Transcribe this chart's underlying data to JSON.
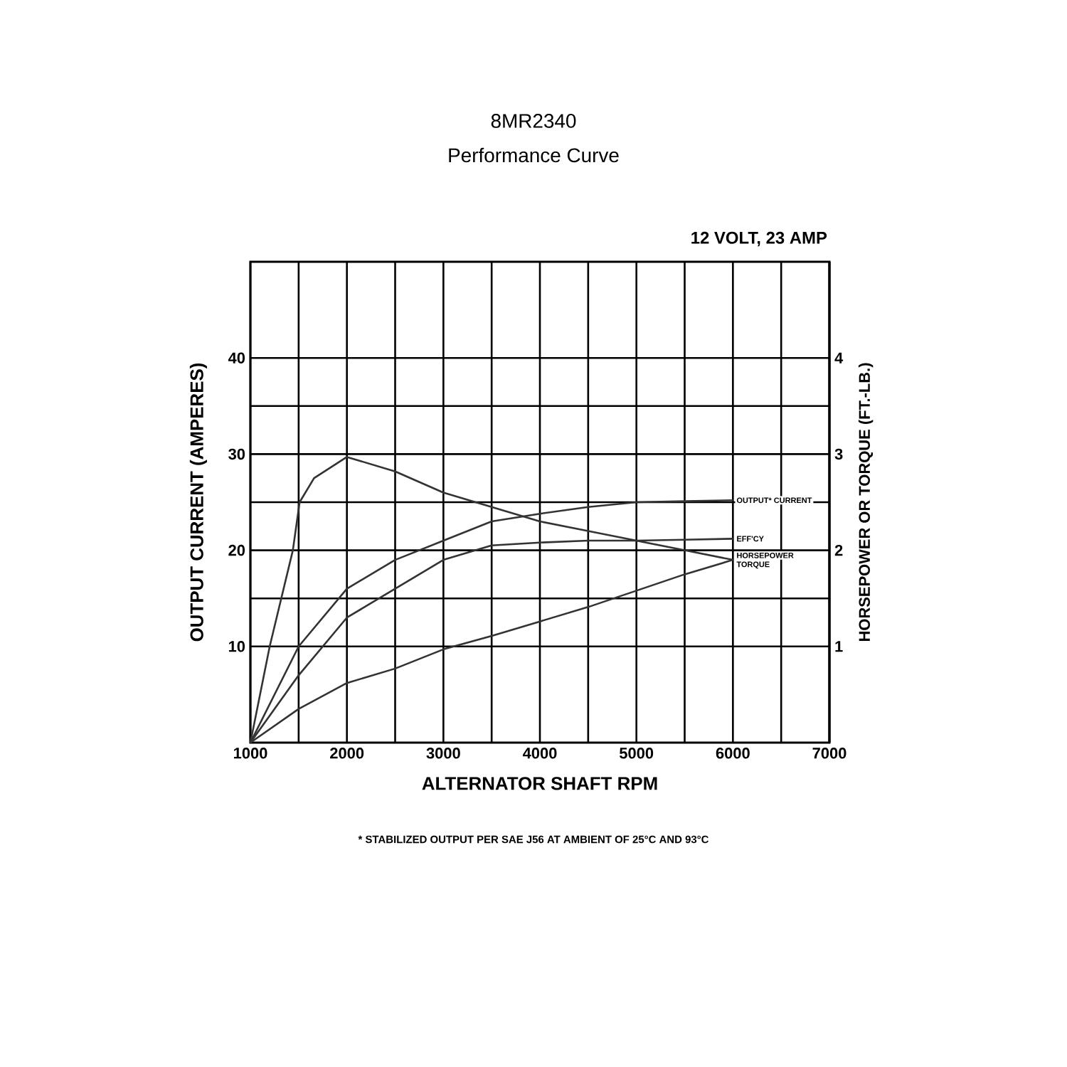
{
  "chart_data": {
    "type": "line",
    "title": "8MR2340",
    "subtitle": "Performance Curve",
    "xlabel": "ALTERNATOR SHAFT RPM",
    "ylabel": "OUTPUT CURRENT (AMPERES)",
    "y2label": "HORSEPOWER OR TORQUE (FT.-LB.)",
    "annotations": [
      "12 VOLT, 23 AMP",
      "* STABILIZED OUTPUT PER SAE J56 AT AMBIENT OF 25°C AND 93°C"
    ],
    "xlim": [
      1000,
      7000
    ],
    "xticks": [
      1000,
      2000,
      3000,
      4000,
      5000,
      6000,
      7000
    ],
    "ylim": [
      0,
      50
    ],
    "yticks": [
      10,
      20,
      30,
      40
    ],
    "y2lim": [
      0,
      5
    ],
    "y2ticks": [
      1,
      2,
      3,
      4
    ],
    "grid": true,
    "marker": "none",
    "line_style": "solid",
    "series": [
      {
        "name": "TORQUE",
        "color": "#333333",
        "x": [
          1000,
          1200,
          1440,
          1510,
          1660,
          2000,
          2500,
          3000,
          3500,
          4000,
          4500,
          5000,
          5500,
          6000
        ],
        "values": [
          0,
          10,
          20,
          25,
          27.5,
          29.7,
          28.2,
          26,
          24.5,
          23,
          22,
          21,
          20,
          19
        ]
      },
      {
        "name": "OUTPUT* CURRENT",
        "color": "#333333",
        "x": [
          1000,
          1500,
          2000,
          2500,
          3000,
          3500,
          4000,
          4500,
          5000,
          5500,
          6000
        ],
        "values": [
          0,
          10,
          16,
          19,
          21,
          23,
          23.8,
          24.5,
          25,
          25.1,
          25.2
        ]
      },
      {
        "name": "EFF'CY",
        "color": "#333333",
        "x": [
          1000,
          1500,
          2000,
          2500,
          3000,
          3500,
          4000,
          4500,
          5000,
          5500,
          6000
        ],
        "values": [
          0,
          7,
          13,
          16,
          19,
          20.5,
          20.8,
          21,
          21,
          21.1,
          21.2
        ]
      },
      {
        "name": "HORSEPOWER",
        "color": "#333333",
        "x": [
          1000,
          1500,
          2000,
          2500,
          3000,
          3500,
          4000,
          4500,
          5000,
          5500,
          6000
        ],
        "values": [
          0,
          3.5,
          6.2,
          7.7,
          9.7,
          11.1,
          12.6,
          14.1,
          15.8,
          17.5,
          19
        ]
      }
    ]
  }
}
